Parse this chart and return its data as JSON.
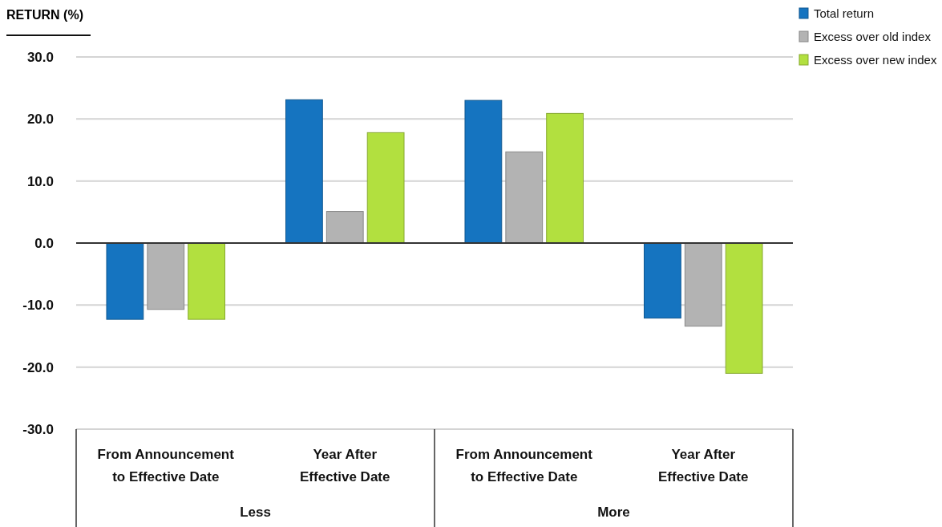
{
  "chart_data": {
    "type": "bar",
    "ylabel": "RETURN (%)",
    "categories": [
      "From Announcement\nto Effective Date",
      "Year After\nEffective Date",
      "From Announcement\nto Effective Date",
      "Year After\nEffective Date"
    ],
    "series": [
      {
        "name": "Total return",
        "color": "#1574c0",
        "values": [
          -12.3,
          23.1,
          23.0,
          -12.1
        ]
      },
      {
        "name": "Excess over old index",
        "color": "#b3b3b3",
        "values": [
          -10.7,
          5.1,
          14.7,
          -13.4
        ]
      },
      {
        "name": "Excess over new index",
        "color": "#b2e03f",
        "values": [
          -12.3,
          17.8,
          20.9,
          -21.0
        ]
      }
    ],
    "ylim": [
      -30,
      30
    ],
    "yticks": [
      {
        "value": -30,
        "label": "-30.0"
      },
      {
        "value": -20,
        "label": "-20.0"
      },
      {
        "value": -10,
        "label": "-10.0"
      },
      {
        "value": 0,
        "label": "0.0"
      },
      {
        "value": 10,
        "label": "10.0"
      },
      {
        "value": 20,
        "label": "20.0"
      },
      {
        "value": 30,
        "label": "30.0"
      }
    ],
    "grid": "y",
    "legend": "top right",
    "annotations": [
      "Less",
      "More"
    ]
  }
}
